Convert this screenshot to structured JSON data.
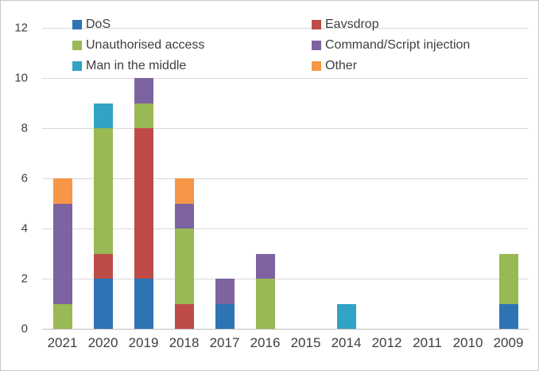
{
  "chart_data": {
    "type": "bar",
    "stacked": true,
    "title": "",
    "xlabel": "",
    "ylabel": "",
    "categories": [
      "2021",
      "2020",
      "2019",
      "2018",
      "2017",
      "2016",
      "2015",
      "2014",
      "2012",
      "2011",
      "2010",
      "2009"
    ],
    "series": [
      {
        "name": "DoS",
        "color": "#2E74B5",
        "values": [
          0,
          2,
          2,
          0,
          1,
          0,
          0,
          0,
          0,
          0,
          0,
          1
        ]
      },
      {
        "name": "Eavsdrop",
        "color": "#BE4B48",
        "values": [
          0,
          1,
          6,
          1,
          0,
          0,
          0,
          0,
          0,
          0,
          0,
          0
        ]
      },
      {
        "name": "Unauthorised access",
        "color": "#98B954",
        "values": [
          1,
          5,
          1,
          3,
          0,
          2,
          0,
          0,
          0,
          0,
          0,
          2
        ]
      },
      {
        "name": "Command/Script injection",
        "color": "#7E63A1",
        "values": [
          4,
          0,
          1,
          1,
          1,
          1,
          0,
          0,
          0,
          0,
          0,
          0
        ]
      },
      {
        "name": "Man in the middle",
        "color": "#31A3C4",
        "values": [
          0,
          1,
          0,
          0,
          0,
          0,
          0,
          1,
          0,
          0,
          0,
          0
        ]
      },
      {
        "name": "Other",
        "color": "#F69646",
        "values": [
          1,
          0,
          0,
          1,
          0,
          0,
          0,
          0,
          0,
          0,
          0,
          0
        ]
      }
    ],
    "ylim": [
      0,
      12
    ],
    "yticks": [
      0,
      2,
      4,
      6,
      8,
      10,
      12
    ],
    "grid": "horizontal",
    "legend_position": "top-inside-two-columns"
  }
}
